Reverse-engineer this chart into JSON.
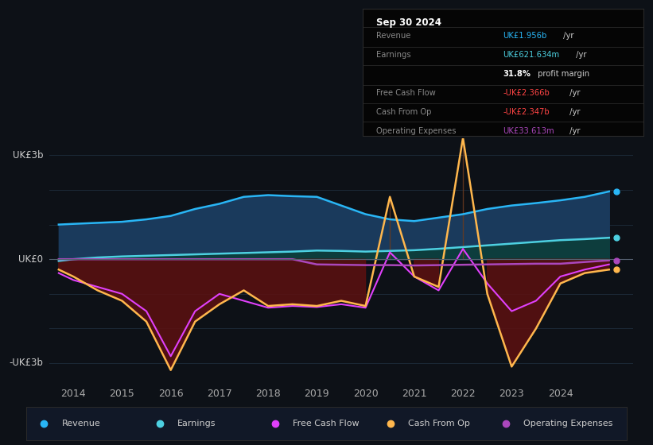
{
  "bg_color": "#0d1117",
  "plot_bg_color": "#0d1117",
  "ylabel": "UK£3b",
  "ylabel_neg": "-UK£3b",
  "y0_label": "UK£0",
  "ylim": [
    -3.5,
    3.5
  ],
  "xlim": [
    2013.5,
    2025.5
  ],
  "xticks": [
    2014,
    2015,
    2016,
    2017,
    2018,
    2019,
    2020,
    2021,
    2022,
    2023,
    2024
  ],
  "x": [
    2013.7,
    2014.0,
    2014.5,
    2015.0,
    2015.5,
    2016.0,
    2016.5,
    2017.0,
    2017.5,
    2018.0,
    2018.5,
    2019.0,
    2019.5,
    2020.0,
    2020.5,
    2021.0,
    2021.5,
    2022.0,
    2022.5,
    2023.0,
    2023.5,
    2024.0,
    2024.5,
    2025.0
  ],
  "revenue": [
    1.0,
    1.02,
    1.05,
    1.08,
    1.15,
    1.25,
    1.45,
    1.6,
    1.8,
    1.85,
    1.82,
    1.8,
    1.55,
    1.3,
    1.15,
    1.1,
    1.2,
    1.3,
    1.45,
    1.55,
    1.62,
    1.7,
    1.8,
    1.956
  ],
  "earnings": [
    -0.05,
    0.0,
    0.05,
    0.08,
    0.1,
    0.12,
    0.14,
    0.16,
    0.18,
    0.2,
    0.22,
    0.25,
    0.24,
    0.22,
    0.24,
    0.26,
    0.3,
    0.35,
    0.4,
    0.45,
    0.5,
    0.55,
    0.58,
    0.62
  ],
  "free_cash_flow": [
    -0.4,
    -0.6,
    -0.8,
    -1.0,
    -1.5,
    -2.8,
    -1.5,
    -1.0,
    -1.2,
    -1.4,
    -1.35,
    -1.38,
    -1.3,
    -1.4,
    0.2,
    -0.5,
    -0.9,
    0.3,
    -0.7,
    -1.5,
    -1.2,
    -0.5,
    -0.3,
    -0.15
  ],
  "cash_from_op": [
    -0.3,
    -0.5,
    -0.9,
    -1.2,
    -1.8,
    -3.2,
    -1.8,
    -1.3,
    -0.9,
    -1.35,
    -1.3,
    -1.35,
    -1.2,
    -1.35,
    1.8,
    -0.5,
    -0.8,
    3.5,
    -1.0,
    -3.1,
    -2.0,
    -0.7,
    -0.4,
    -0.3
  ],
  "operating_expenses": [
    0.0,
    0.0,
    0.0,
    0.0,
    0.0,
    0.0,
    0.0,
    0.0,
    0.0,
    0.0,
    0.0,
    -0.15,
    -0.16,
    -0.17,
    -0.17,
    -0.18,
    -0.17,
    -0.16,
    -0.15,
    -0.14,
    -0.13,
    -0.13,
    -0.08,
    -0.034
  ],
  "revenue_color": "#29b6f6",
  "revenue_fill_color": "#1a3a5c",
  "earnings_color": "#4dd0e1",
  "earnings_fill_color": "#0d3d3d",
  "free_cash_flow_color": "#e040fb",
  "cash_from_op_color": "#ffb74d",
  "cash_from_op_fill_pos": "#6b3a1f",
  "cash_from_op_fill_neg": "#5c1010",
  "operating_expenses_color": "#ab47bc",
  "grid_color": "#1e2d3d",
  "zero_line_color": "#556070",
  "info_box_bg": "#050505",
  "info_box_border": "#2a2a2a",
  "legend_bg": "#111827",
  "legend_border": "#2a2a2a",
  "info_title": "Sep 30 2024",
  "legend_items": [
    {
      "label": "Revenue",
      "color": "#29b6f6"
    },
    {
      "label": "Earnings",
      "color": "#4dd0e1"
    },
    {
      "label": "Free Cash Flow",
      "color": "#e040fb"
    },
    {
      "label": "Cash From Op",
      "color": "#ffb74d"
    },
    {
      "label": "Operating Expenses",
      "color": "#ab47bc"
    }
  ]
}
